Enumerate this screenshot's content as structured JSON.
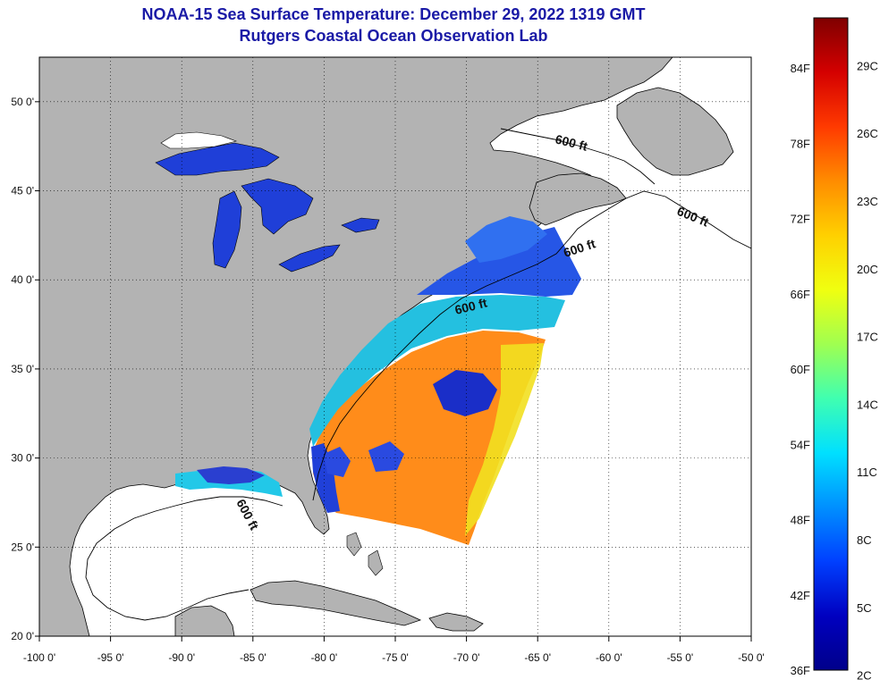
{
  "title": {
    "line1": "NOAA-15 Sea Surface Temperature:  December 29, 2022 1319 GMT",
    "line2": "Rutgers Coastal Ocean Observation Lab"
  },
  "map": {
    "lon_range": [
      -100,
      -50
    ],
    "lat_range": [
      20,
      52.5
    ],
    "lon_ticks": [
      "-100 0'",
      "-95 0'",
      "-90 0'",
      "-85 0'",
      "-80 0'",
      "-75 0'",
      "-70 0'",
      "-65 0'",
      "-60 0'",
      "-55 0'",
      "-50 0'"
    ],
    "lat_ticks": [
      "20 0'",
      "25 0'",
      "30 0'",
      "35 0'",
      "40 0'",
      "45 0'",
      "50 0'"
    ],
    "contour_labels": [
      "600 ft",
      "600 ft",
      "600 ft",
      "600 ft",
      "600 ft"
    ],
    "colors": {
      "land": "#b3b3b3",
      "ocean_nodata": "#ffffff",
      "coast": "#000000"
    }
  },
  "colorbar": {
    "fahrenheit": [
      "84F",
      "78F",
      "72F",
      "66F",
      "60F",
      "54F",
      "48F",
      "42F",
      "36F"
    ],
    "celsius": [
      "29C",
      "26C",
      "23C",
      "20C",
      "17C",
      "14C",
      "11C",
      "8C",
      "5C",
      "2C"
    ],
    "gradient_top_to_bottom": [
      "#7f0000",
      "#d40000",
      "#ff3a00",
      "#ff8c00",
      "#ffd000",
      "#f0ff10",
      "#a0ff50",
      "#40ffb0",
      "#00e0ff",
      "#0090ff",
      "#0040ff",
      "#0000c0",
      "#00008a"
    ]
  }
}
